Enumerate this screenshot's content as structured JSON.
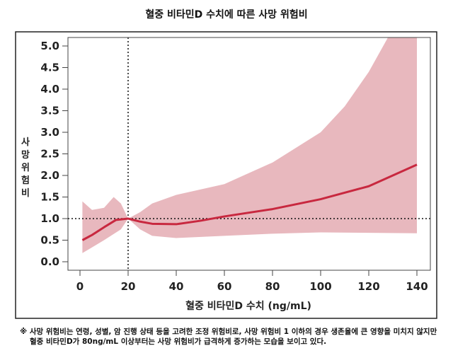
{
  "chart_data": {
    "type": "line",
    "title": "혈중 비타민D 수치에 따른 사망 위험비",
    "xlabel": "혈중 비타민D 수치 (ng/mL)",
    "ylabel": "사망 위험비",
    "xlim": [
      0,
      140
    ],
    "ylim": [
      0,
      5
    ],
    "xticks": [
      0,
      20,
      40,
      60,
      80,
      100,
      120,
      140
    ],
    "yticks": [
      "0.0",
      "0.5",
      "1.0",
      "1.5",
      "2.0",
      "2.5",
      "3.0",
      "3.5",
      "4.0",
      "4.5",
      "5.0"
    ],
    "reference_lines": {
      "x": 20,
      "y": 1.0
    },
    "colors": {
      "line": "#c8283f",
      "band": "#e8b8be"
    },
    "series": [
      {
        "x": [
          1,
          5,
          10,
          15,
          20,
          25,
          30,
          40,
          50,
          60,
          80,
          100,
          120,
          140
        ],
        "y": [
          0.5,
          0.62,
          0.8,
          0.97,
          1.0,
          0.93,
          0.88,
          0.87,
          0.95,
          1.05,
          1.22,
          1.45,
          1.75,
          2.25
        ]
      }
    ],
    "confidence_band": {
      "upper": {
        "x": [
          1,
          5,
          10,
          14,
          17,
          20,
          25,
          30,
          40,
          60,
          80,
          100,
          110,
          120,
          128
        ],
        "y": [
          1.4,
          1.2,
          1.25,
          1.5,
          1.35,
          1.0,
          1.15,
          1.35,
          1.55,
          1.8,
          2.3,
          3.0,
          3.6,
          4.4,
          5.2
        ]
      },
      "lower": {
        "x": [
          1,
          10,
          17,
          20,
          25,
          30,
          40,
          60,
          80,
          100,
          140
        ],
        "y": [
          0.2,
          0.5,
          0.75,
          1.0,
          0.75,
          0.6,
          0.55,
          0.6,
          0.65,
          0.68,
          0.66
        ]
      }
    }
  },
  "footnote": [
    "※ 사망 위험비는 연령, 성별, 암 진행 상태 등을 고려한 조정 위험비로, 사망 위험비 1 이하의 경우 생존율에 큰 영향을 미치지 않지만",
    "혈중 비타민D가 80ng/mL 이상부터는 사망 위험비가 급격하게 증가하는 모습을 보이고 있다."
  ]
}
